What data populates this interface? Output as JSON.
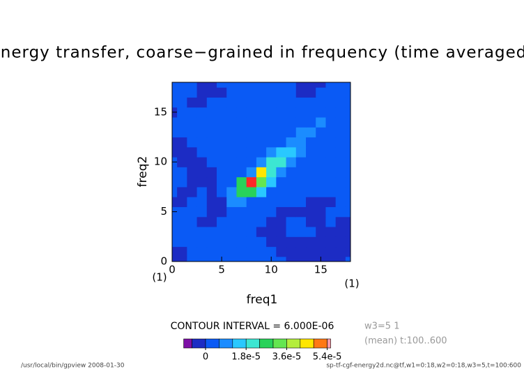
{
  "chart_data": {
    "type": "contour",
    "title": "energy transfer, coarse−grained in frequency (time averaged)",
    "xlabel": "freq1",
    "ylabel": "freq2",
    "xunit": "(1)",
    "yunit": "(1)",
    "xlim": [
      0,
      18
    ],
    "ylim": [
      0,
      18
    ],
    "xticks": [
      0,
      5,
      10,
      15
    ],
    "yticks": [
      0,
      5,
      10,
      15
    ],
    "x": [
      0,
      1,
      2,
      3,
      4,
      5,
      6,
      7,
      8,
      9,
      10,
      11,
      12,
      13,
      14,
      15,
      16,
      17,
      18
    ],
    "y": [
      0,
      1,
      2,
      3,
      4,
      5,
      6,
      7,
      8,
      9,
      10,
      11,
      12,
      13,
      14,
      15,
      16,
      17,
      18
    ],
    "z": [
      [
        -3e-06,
        -3e-06,
        3e-06,
        3e-06,
        3e-06,
        3e-06,
        3e-06,
        3e-06,
        3e-06,
        3e-06,
        3e-06,
        3e-06,
        -3e-06,
        -3e-06,
        -3e-06,
        -3e-06,
        -3e-06,
        -3e-06,
        3e-06
      ],
      [
        -3e-06,
        -3e-06,
        3e-06,
        3e-06,
        3e-06,
        3e-06,
        3e-06,
        3e-06,
        3e-06,
        3e-06,
        3e-06,
        -3e-06,
        -3e-06,
        -3e-06,
        -3e-06,
        -3e-06,
        -3e-06,
        -3e-06,
        -3e-06
      ],
      [
        3e-06,
        3e-06,
        3e-06,
        3e-06,
        3e-06,
        3e-06,
        3e-06,
        3e-06,
        3e-06,
        3e-06,
        -3e-06,
        -3e-06,
        -3e-06,
        -3e-06,
        -3e-06,
        -3e-06,
        -3e-06,
        -3e-06,
        -3e-06
      ],
      [
        3e-06,
        3e-06,
        3e-06,
        3e-06,
        3e-06,
        3e-06,
        3e-06,
        3e-06,
        3e-06,
        -3e-06,
        -3e-06,
        -3e-06,
        3e-06,
        3e-06,
        3e-06,
        -3e-06,
        -3e-06,
        -3e-06,
        -3e-06
      ],
      [
        3e-06,
        3e-06,
        3e-06,
        -3e-06,
        -3e-06,
        3e-06,
        3e-06,
        3e-06,
        3e-06,
        3e-06,
        -3e-06,
        -3e-06,
        3e-06,
        3e-06,
        -3e-06,
        -3e-06,
        3e-06,
        -3e-06,
        -3e-06
      ],
      [
        3e-06,
        3e-06,
        3e-06,
        3e-06,
        -3e-06,
        -3e-06,
        3e-06,
        3e-06,
        3e-06,
        3e-06,
        3e-06,
        -3e-06,
        -3e-06,
        -3e-06,
        -3e-06,
        -3e-06,
        3e-06,
        3e-06,
        3e-06
      ],
      [
        -3e-06,
        -3e-06,
        3e-06,
        3e-06,
        -3e-06,
        -3e-06,
        8e-06,
        8e-06,
        3e-06,
        3e-06,
        3e-06,
        3e-06,
        3e-06,
        3e-06,
        -3e-06,
        -3e-06,
        -3e-06,
        3e-06,
        3e-06
      ],
      [
        3e-06,
        -3e-06,
        -3e-06,
        3e-06,
        -3e-06,
        3e-06,
        1e-05,
        2.5e-05,
        2.5e-05,
        1.2e-05,
        3e-06,
        3e-06,
        3e-06,
        3e-06,
        3e-06,
        3e-06,
        3e-06,
        3e-06,
        3e-06
      ],
      [
        3e-06,
        3e-06,
        -3e-06,
        -3e-06,
        -3e-06,
        3e-06,
        3e-06,
        2.5e-05,
        6e-05,
        3e-05,
        1.2e-05,
        3e-06,
        3e-06,
        3e-06,
        3e-06,
        3e-06,
        3e-06,
        3e-06,
        3e-06
      ],
      [
        3e-06,
        3e-06,
        -3e-06,
        -3e-06,
        -3e-06,
        3e-06,
        3e-06,
        3e-06,
        1e-05,
        4.5e-05,
        2.2e-05,
        1e-05,
        3e-06,
        3e-06,
        3e-06,
        3e-06,
        3e-06,
        3e-06,
        3e-06
      ],
      [
        3e-06,
        -3e-06,
        -3e-06,
        -3e-06,
        3e-06,
        3e-06,
        3e-06,
        3e-06,
        3e-06,
        8e-06,
        2e-05,
        2e-05,
        1e-05,
        3e-06,
        3e-06,
        3e-06,
        3e-06,
        3e-06,
        3e-06
      ],
      [
        -3e-06,
        -3e-06,
        -3e-06,
        3e-06,
        3e-06,
        3e-06,
        3e-06,
        3e-06,
        3e-06,
        3e-06,
        8e-06,
        1.4e-05,
        1.4e-05,
        8e-06,
        3e-06,
        3e-06,
        3e-06,
        3e-06,
        3e-06
      ],
      [
        -3e-06,
        -3e-06,
        3e-06,
        3e-06,
        3e-06,
        3e-06,
        3e-06,
        3e-06,
        3e-06,
        3e-06,
        3e-06,
        3e-06,
        1e-05,
        1e-05,
        3e-06,
        3e-06,
        3e-06,
        3e-06,
        3e-06
      ],
      [
        3e-06,
        3e-06,
        3e-06,
        3e-06,
        3e-06,
        3e-06,
        3e-06,
        3e-06,
        3e-06,
        3e-06,
        3e-06,
        3e-06,
        3e-06,
        8e-06,
        8e-06,
        3e-06,
        3e-06,
        3e-06,
        3e-06
      ],
      [
        3e-06,
        3e-06,
        3e-06,
        3e-06,
        3e-06,
        3e-06,
        3e-06,
        3e-06,
        3e-06,
        3e-06,
        3e-06,
        3e-06,
        3e-06,
        3e-06,
        3e-06,
        7e-06,
        3e-06,
        3e-06,
        3e-06
      ],
      [
        -3e-06,
        3e-06,
        3e-06,
        3e-06,
        3e-06,
        3e-06,
        3e-06,
        3e-06,
        3e-06,
        3e-06,
        3e-06,
        3e-06,
        3e-06,
        3e-06,
        3e-06,
        3e-06,
        3e-06,
        3e-06,
        3e-06
      ],
      [
        3e-06,
        3e-06,
        -3e-06,
        -3e-06,
        3e-06,
        3e-06,
        3e-06,
        3e-06,
        3e-06,
        3e-06,
        3e-06,
        3e-06,
        3e-06,
        3e-06,
        3e-06,
        3e-06,
        3e-06,
        3e-06,
        3e-06
      ],
      [
        3e-06,
        3e-06,
        3e-06,
        -3e-06,
        -3e-06,
        -3e-06,
        3e-06,
        3e-06,
        3e-06,
        3e-06,
        3e-06,
        3e-06,
        3e-06,
        -3e-06,
        -3e-06,
        3e-06,
        3e-06,
        3e-06,
        3e-06
      ],
      [
        3e-06,
        3e-06,
        3e-06,
        -3e-06,
        -3e-06,
        3e-06,
        3e-06,
        3e-06,
        3e-06,
        3e-06,
        3e-06,
        3e-06,
        3e-06,
        -3e-06,
        -3e-06,
        -3e-06,
        3e-06,
        3e-06,
        3e-06
      ]
    ],
    "levels": [
      -6e-06,
      0,
      6e-06,
      1.2e-05,
      1.8e-05,
      2.4e-05,
      3e-05,
      3.6e-05,
      4.2e-05,
      4.8e-05,
      5.4e-05
    ],
    "colors": [
      "#7d0fa6",
      "#1c2cc4",
      "#0a5af5",
      "#1b8cff",
      "#29c8ff",
      "#3ce6d2",
      "#28d25a",
      "#64e650",
      "#b4ee3c",
      "#ffe600",
      "#ff7814",
      "#ff2828"
    ],
    "over_color": "#ff9aa8",
    "contour_interval_label": "CONTOUR INTERVAL = 6.000E-06",
    "colorbar_ticks": [
      0,
      {
        "value": 1.8e-05,
        "label": "1.8e-5"
      },
      {
        "value": 3.6e-05,
        "label": "3.6e-5"
      },
      {
        "value": 5.4e-05,
        "label": "5.4e-5"
      }
    ],
    "annotations": [
      "w3=5 1",
      "(mean) t:100..600"
    ],
    "footer_left": "/usr/local/bin/gpview  2008-01-30",
    "footer_right": "sp-tf-cgf-energy2d.nc@tf,w1=0:18,w2=0:18,w3=5,t=100:600"
  }
}
